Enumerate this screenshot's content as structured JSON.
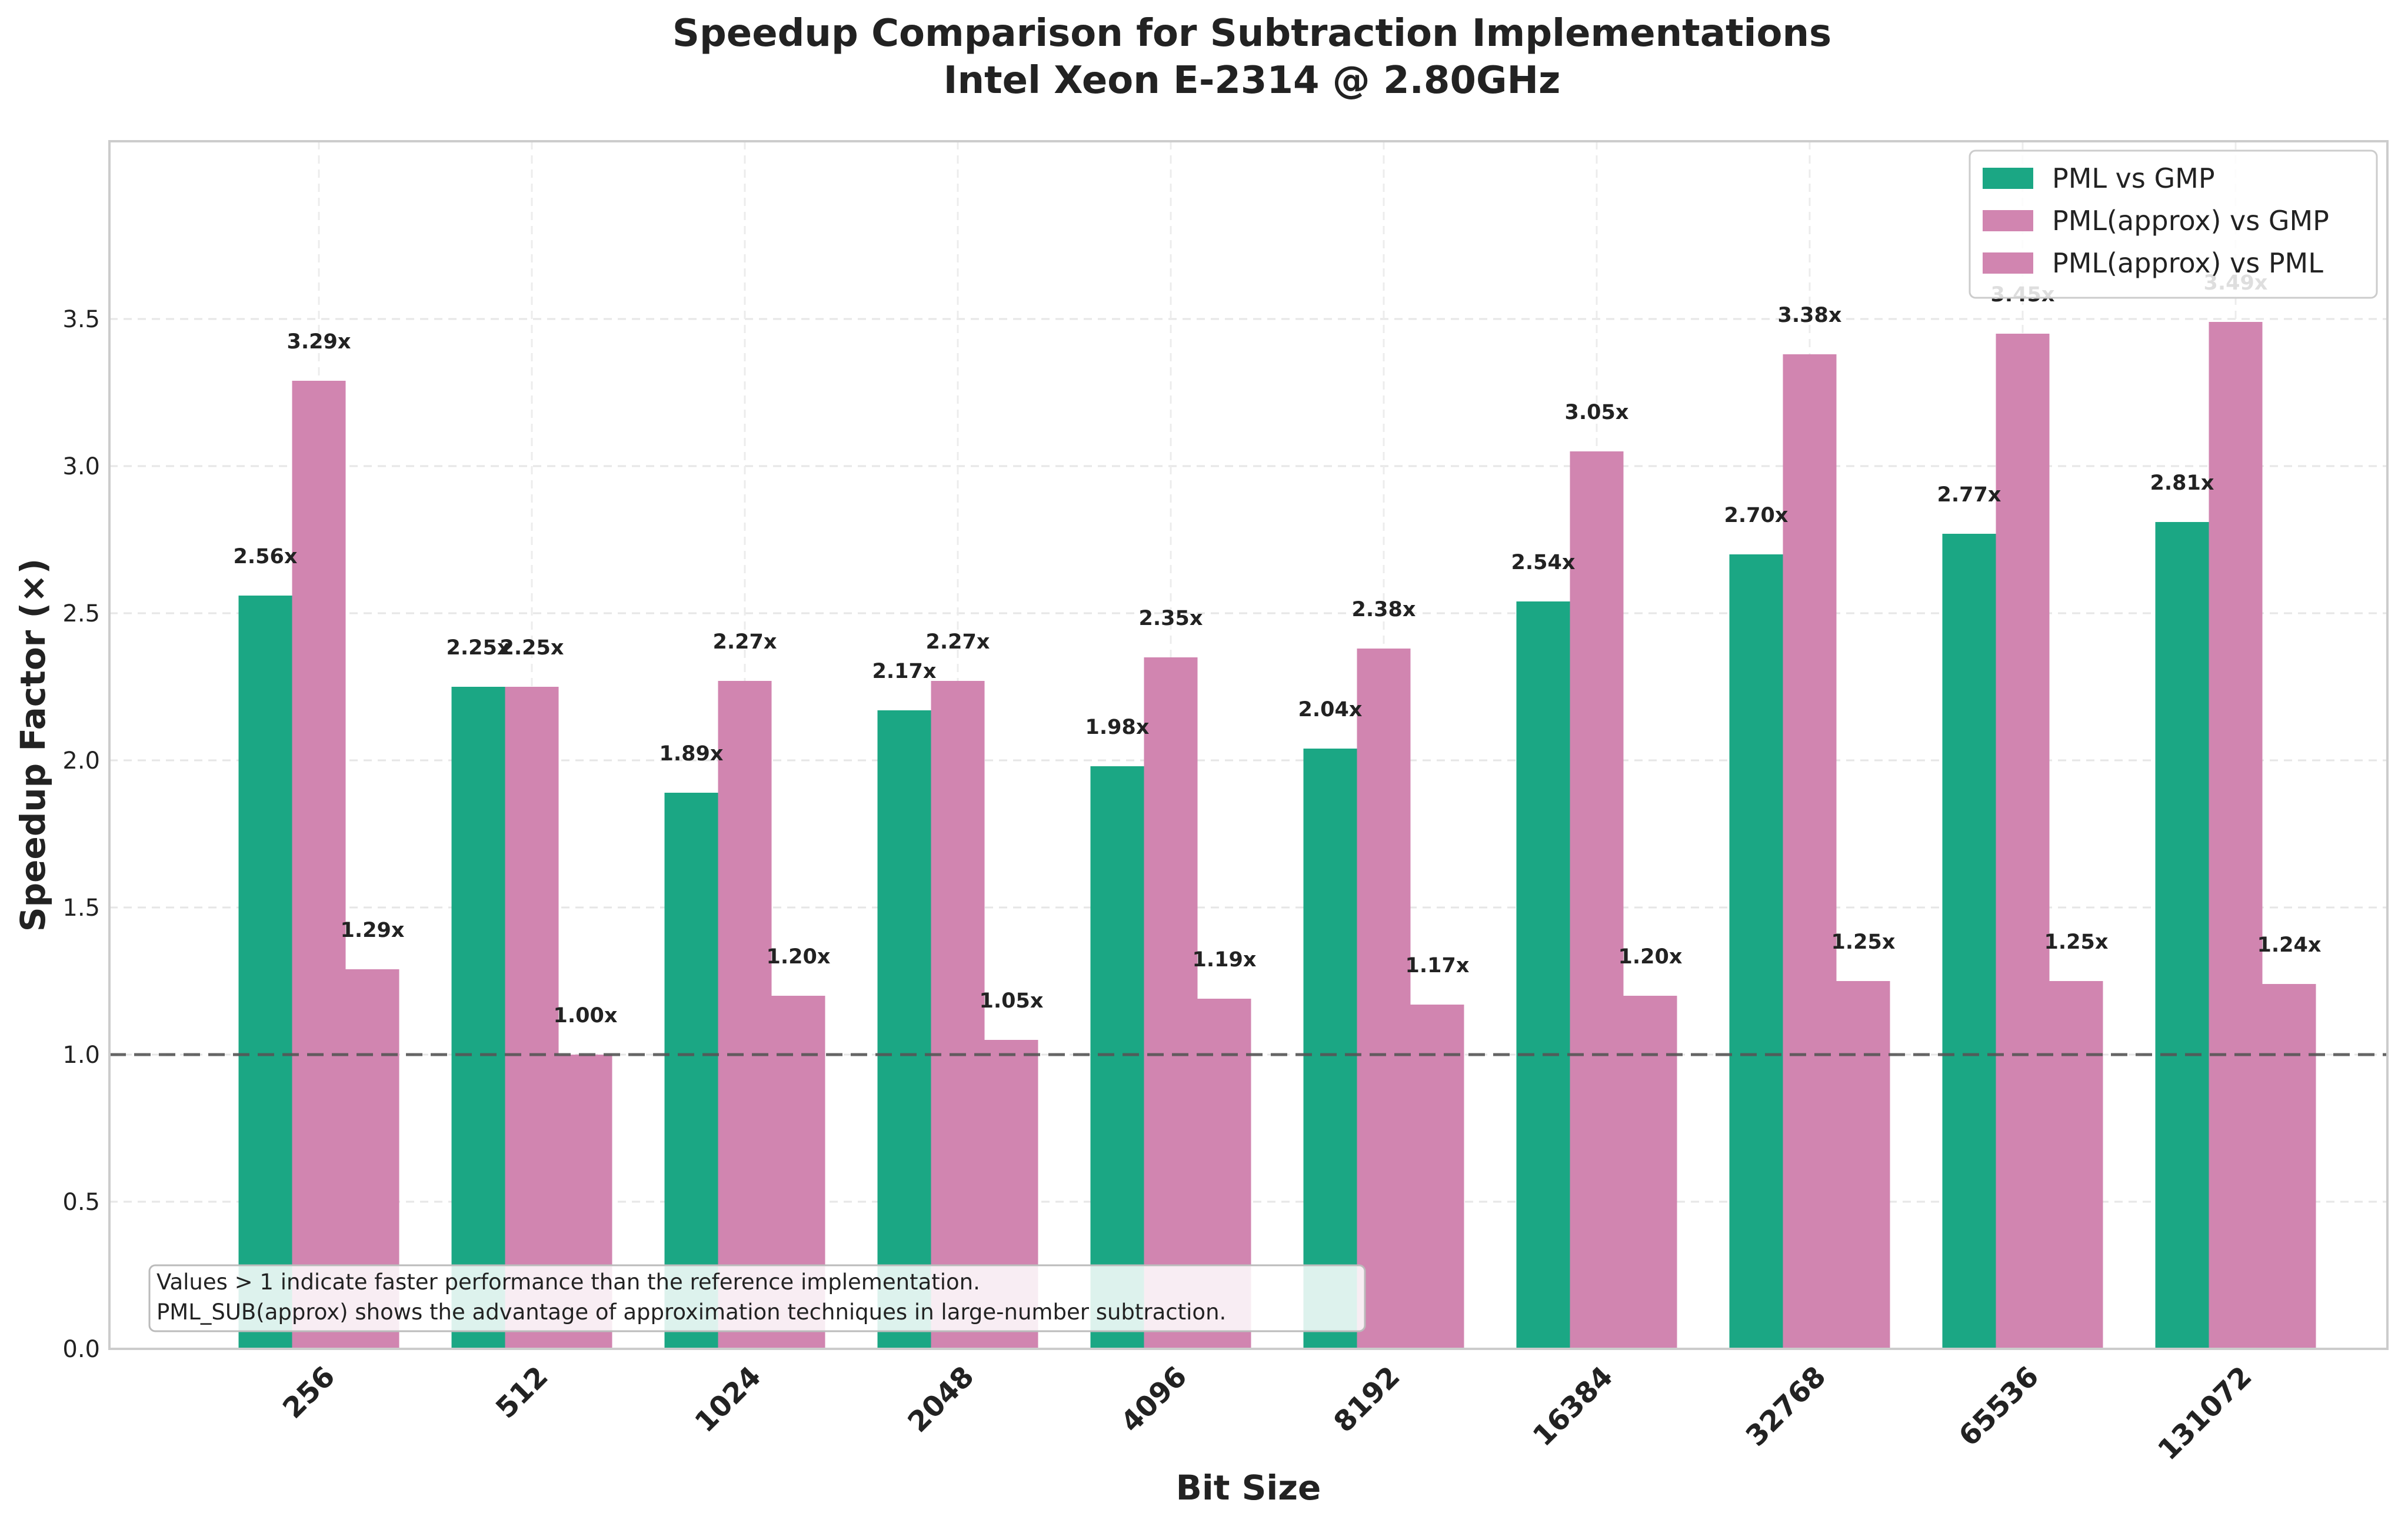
{
  "chart_data": {
    "type": "bar",
    "title": "Speedup Comparison for Subtraction Implementations",
    "subtitle": "Intel Xeon E-2314 @ 2.80GHz",
    "xlabel": "Bit Size",
    "ylabel": "Speedup Factor (×)",
    "categories": [
      "256",
      "512",
      "1024",
      "2048",
      "4096",
      "8192",
      "16384",
      "32768",
      "65536",
      "131072"
    ],
    "series": [
      {
        "name": "PML vs GMP",
        "color": "#1ba784",
        "values": [
          2.56,
          2.25,
          1.89,
          2.17,
          1.98,
          2.04,
          2.54,
          2.7,
          2.77,
          2.81
        ],
        "labels": [
          "2.56x",
          "2.25x",
          "1.89x",
          "2.17x",
          "1.98x",
          "2.04x",
          "2.54x",
          "2.70x",
          "2.77x",
          "2.81x"
        ]
      },
      {
        "name": "PML(approx) vs GMP",
        "color": "#d185b0",
        "values": [
          3.29,
          2.25,
          2.27,
          2.27,
          2.35,
          2.38,
          3.05,
          3.38,
          3.45,
          3.49
        ],
        "labels": [
          "3.29x",
          "2.25x",
          "2.27x",
          "2.27x",
          "2.35x",
          "2.38x",
          "3.05x",
          "3.38x",
          "3.45x",
          "3.49x"
        ]
      },
      {
        "name": "PML(approx) vs PML",
        "color": "#d185b0",
        "values": [
          1.29,
          1.0,
          1.2,
          1.05,
          1.19,
          1.17,
          1.2,
          1.25,
          1.25,
          1.24
        ],
        "labels": [
          "1.29x",
          "1.00x",
          "1.20x",
          "1.05x",
          "1.19x",
          "1.17x",
          "1.20x",
          "1.25x",
          "1.25x",
          "1.24x"
        ]
      }
    ],
    "ylim": [
      0,
      4.0
    ],
    "yticks": [
      "0.0",
      "0.5",
      "1.0",
      "1.5",
      "2.0",
      "2.5",
      "3.0",
      "3.5"
    ],
    "reference_line": 1.0,
    "grid": true,
    "legend_position": "top-right",
    "annotation": [
      "Values > 1 indicate faster performance than the reference implementation.",
      "PML_SUB(approx) shows the advantage of approximation techniques in large-number subtraction."
    ]
  }
}
